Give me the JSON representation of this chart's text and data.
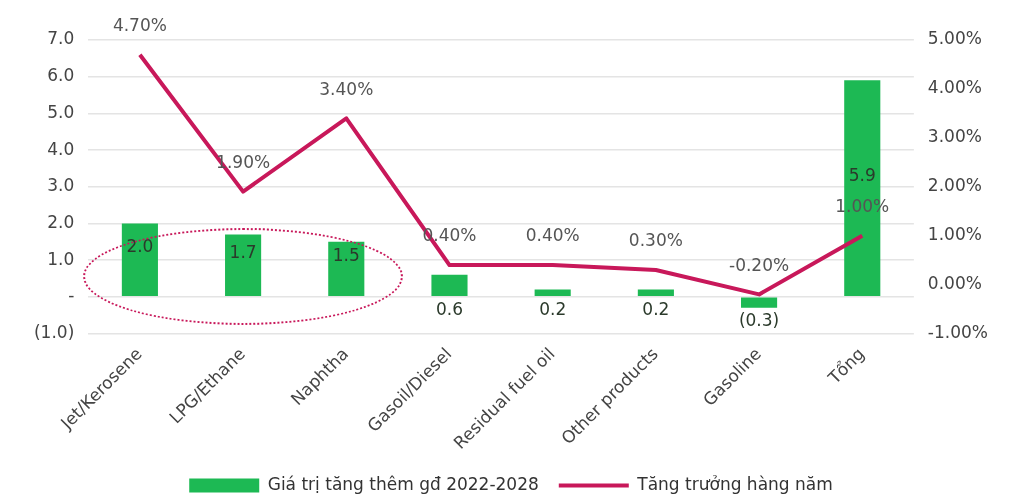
{
  "chart_data": {
    "type": "bar",
    "categories": [
      "Jet/Kerosene",
      "LPG/Ethane",
      "Naphtha",
      "Gasoil/Diesel",
      "Residual fuel oil",
      "Other products",
      "Gasoline",
      "Tổng"
    ],
    "series": [
      {
        "name": "Giá trị tăng thêm gđ 2022-2028",
        "type": "bar",
        "color": "#1db954",
        "values": [
          2.0,
          1.7,
          1.5,
          0.6,
          0.2,
          0.2,
          -0.3,
          5.9
        ],
        "value_labels": [
          "2.0",
          "1.7",
          "1.5",
          "0.6",
          "0.2",
          "0.2",
          "(0.3)",
          "5.9"
        ]
      },
      {
        "name": "Tăng trưởng hàng năm",
        "type": "line",
        "axis": "y2",
        "color": "#c8185a",
        "values": [
          4.7,
          1.9,
          3.4,
          0.4,
          0.4,
          0.3,
          -0.2,
          1.0
        ],
        "value_labels": [
          "4.70%",
          "1.90%",
          "3.40%",
          "0.40%",
          "0.40%",
          "0.30%",
          "-0.20%",
          "1.00%"
        ]
      }
    ],
    "ylim": [
      -1,
      7
    ],
    "yticks": [
      {
        "value": -1,
        "label": "(1.0)"
      },
      {
        "value": 0,
        "label": "-"
      },
      {
        "value": 1,
        "label": "1.0"
      },
      {
        "value": 2,
        "label": "2.0"
      },
      {
        "value": 3,
        "label": "3.0"
      },
      {
        "value": 4,
        "label": "4.0"
      },
      {
        "value": 5,
        "label": "5.0"
      },
      {
        "value": 6,
        "label": "6.0"
      },
      {
        "value": 7,
        "label": "7.0"
      }
    ],
    "y2lim": [
      -1,
      5
    ],
    "y2ticks": [
      {
        "value": -1,
        "label": "-1.00%"
      },
      {
        "value": 0,
        "label": "0.00%"
      },
      {
        "value": 1,
        "label": "1.00%"
      },
      {
        "value": 2,
        "label": "2.00%"
      },
      {
        "value": 3,
        "label": "3.00%"
      },
      {
        "value": 4,
        "label": "4.00%"
      },
      {
        "value": 5,
        "label": "5.00%"
      }
    ],
    "grid": "y",
    "legend": "bottom",
    "marker": "none",
    "line_style": "solid"
  }
}
